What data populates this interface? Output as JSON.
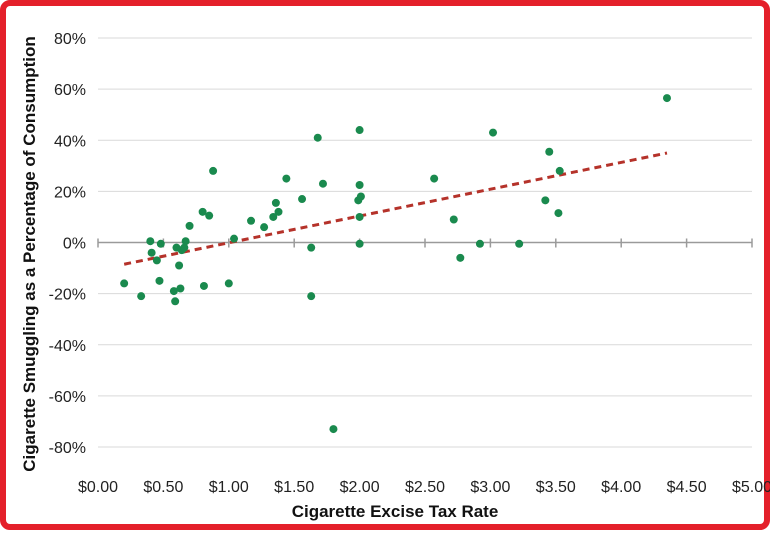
{
  "chart_data": {
    "type": "scatter",
    "title": "",
    "xlabel": "Cigarette Excise Tax Rate",
    "ylabel": "Cigarette Smuggling as a Percentage of Consumption",
    "xlim": [
      0,
      5
    ],
    "ylim": [
      -80,
      80
    ],
    "x_tick_labels": [
      "$0.00",
      "$0.50",
      "$1.00",
      "$1.50",
      "$2.00",
      "$2.50",
      "$3.00",
      "$3.50",
      "$4.00",
      "$4.50",
      "$5.00"
    ],
    "y_tick_labels": [
      "80%",
      "60%",
      "40%",
      "20%",
      "0%",
      "-20%",
      "-40%",
      "-60%",
      "-80%"
    ],
    "grid": "horizontal",
    "legend": "none",
    "colors": {
      "points": "#1a8a4e",
      "trendline": "#b5322a",
      "frame": "#e4202a",
      "zero_line": "#9a9a9a",
      "grid": "#d9d9d9"
    },
    "series": [
      {
        "points": [
          [
            0.2,
            -16
          ],
          [
            0.33,
            -21
          ],
          [
            0.4,
            0.5
          ],
          [
            0.41,
            -4
          ],
          [
            0.45,
            -7
          ],
          [
            0.47,
            -15
          ],
          [
            0.48,
            -0.5
          ],
          [
            0.58,
            -19
          ],
          [
            0.59,
            -23
          ],
          [
            0.6,
            -2
          ],
          [
            0.62,
            -9
          ],
          [
            0.63,
            -18
          ],
          [
            0.64,
            -3
          ],
          [
            0.66,
            -2
          ],
          [
            0.67,
            0.5
          ],
          [
            0.7,
            6.5
          ],
          [
            0.8,
            12
          ],
          [
            0.81,
            -17
          ],
          [
            0.85,
            10.5
          ],
          [
            0.88,
            28
          ],
          [
            1.0,
            -16
          ],
          [
            1.04,
            1.5
          ],
          [
            1.17,
            8.5
          ],
          [
            1.27,
            6
          ],
          [
            1.34,
            10
          ],
          [
            1.36,
            15.5
          ],
          [
            1.38,
            12
          ],
          [
            1.44,
            25
          ],
          [
            1.56,
            17
          ],
          [
            1.63,
            -2
          ],
          [
            1.63,
            -21
          ],
          [
            1.68,
            41
          ],
          [
            1.72,
            23
          ],
          [
            1.8,
            -73
          ],
          [
            1.99,
            16.5
          ],
          [
            2.0,
            44
          ],
          [
            2.0,
            10
          ],
          [
            2.0,
            22.5
          ],
          [
            2.0,
            -0.5
          ],
          [
            2.01,
            18
          ],
          [
            2.57,
            25
          ],
          [
            2.72,
            9
          ],
          [
            2.77,
            -6
          ],
          [
            2.92,
            -0.5
          ],
          [
            3.02,
            43
          ],
          [
            3.22,
            -0.5
          ],
          [
            3.42,
            16.5
          ],
          [
            3.45,
            35.5
          ],
          [
            3.52,
            11.5
          ],
          [
            3.53,
            28
          ],
          [
            4.35,
            56.5
          ]
        ]
      }
    ],
    "trendline": {
      "x": [
        0.2,
        4.35
      ],
      "y": [
        -8.5,
        35
      ],
      "style": "dashed"
    }
  }
}
